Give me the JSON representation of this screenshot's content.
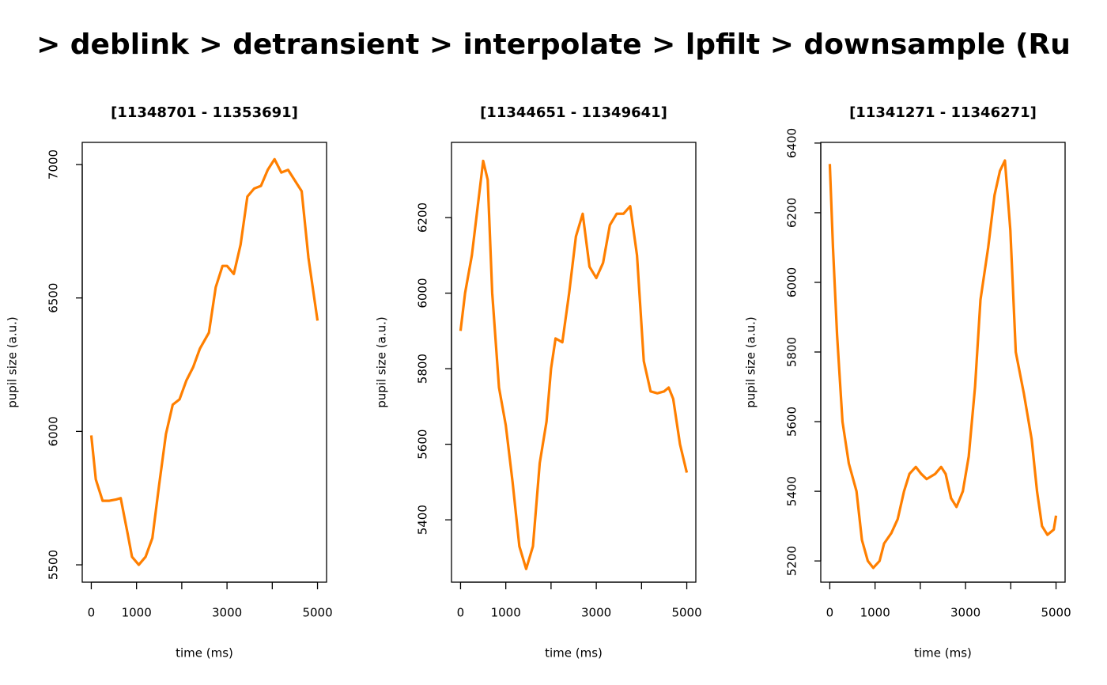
{
  "title": "> deblink > detransient > interpolate > lpfilt > downsample (Ru",
  "chart_data": [
    {
      "type": "line",
      "title": "[11348701 - 11353691]",
      "xlabel": "time (ms)",
      "ylabel": "pupil size (a.u.)",
      "color": "#ff7f00",
      "x": [
        0,
        100,
        250,
        400,
        550,
        650,
        800,
        900,
        1050,
        1200,
        1350,
        1500,
        1650,
        1800,
        1950,
        2100,
        2250,
        2400,
        2600,
        2750,
        2900,
        3000,
        3150,
        3300,
        3450,
        3600,
        3750,
        3900,
        4050,
        4200,
        4350,
        4500,
        4650,
        4800,
        5000
      ],
      "values": [
        5985,
        5820,
        5740,
        5740,
        5745,
        5750,
        5620,
        5530,
        5500,
        5530,
        5600,
        5800,
        5990,
        6100,
        6120,
        6190,
        6240,
        6310,
        6370,
        6540,
        6620,
        6620,
        6590,
        6700,
        6880,
        6910,
        6920,
        6980,
        7020,
        6970,
        6980,
        6940,
        6900,
        6650,
        6415
      ],
      "xlim": [
        -200,
        5200
      ],
      "xticks": [
        0,
        1000,
        2000,
        3000,
        4000,
        5000
      ],
      "ylim": [
        5435,
        7083
      ],
      "yticks": [
        5500,
        6000,
        6500,
        7000
      ]
    },
    {
      "type": "line",
      "title": "[11344651 - 11349641]",
      "xlabel": "time (ms)",
      "ylabel": "pupil size (a.u.)",
      "color": "#ff7f00",
      "x": [
        0,
        100,
        250,
        400,
        500,
        600,
        700,
        850,
        1000,
        1150,
        1300,
        1450,
        1600,
        1750,
        1900,
        2000,
        2100,
        2250,
        2400,
        2550,
        2700,
        2850,
        3000,
        3150,
        3300,
        3450,
        3600,
        3750,
        3900,
        4050,
        4200,
        4350,
        4500,
        4600,
        4700,
        4850,
        5000
      ],
      "values": [
        5900,
        6000,
        6100,
        6250,
        6350,
        6300,
        6000,
        5750,
        5650,
        5500,
        5330,
        5270,
        5330,
        5550,
        5660,
        5800,
        5880,
        5870,
        6000,
        6150,
        6210,
        6070,
        6040,
        6080,
        6180,
        6210,
        6210,
        6230,
        6100,
        5820,
        5740,
        5735,
        5740,
        5750,
        5720,
        5600,
        5525
      ],
      "xlim": [
        -200,
        5200
      ],
      "xticks": [
        0,
        1000,
        2000,
        3000,
        4000,
        5000
      ],
      "ylim": [
        5235,
        6399
      ],
      "yticks": [
        5400,
        5600,
        5800,
        6000,
        6200
      ]
    },
    {
      "type": "line",
      "title": "[11341271 - 11346271]",
      "xlabel": "time (ms)",
      "ylabel": "pupil size (a.u.)",
      "color": "#ff7f00",
      "x": [
        0,
        70,
        160,
        280,
        420,
        590,
        710,
        840,
        960,
        1100,
        1200,
        1360,
        1500,
        1640,
        1760,
        1900,
        2020,
        2140,
        2330,
        2460,
        2560,
        2680,
        2800,
        2940,
        3070,
        3210,
        3330,
        3500,
        3640,
        3760,
        3870,
        3990,
        4110,
        4290,
        4460,
        4580,
        4690,
        4810,
        4950,
        5000
      ],
      "values": [
        6340,
        6100,
        5850,
        5600,
        5480,
        5400,
        5260,
        5200,
        5180,
        5200,
        5250,
        5280,
        5320,
        5400,
        5450,
        5470,
        5450,
        5435,
        5450,
        5470,
        5450,
        5380,
        5355,
        5400,
        5500,
        5700,
        5950,
        6100,
        6250,
        6320,
        6350,
        6150,
        5800,
        5680,
        5550,
        5400,
        5300,
        5275,
        5290,
        5330
      ],
      "xlim": [
        -200,
        5200
      ],
      "xticks": [
        0,
        1000,
        2000,
        3000,
        4000,
        5000
      ],
      "ylim": [
        5139,
        6402
      ],
      "yticks": [
        5200,
        5400,
        5600,
        5800,
        6000,
        6200,
        6400
      ]
    }
  ]
}
